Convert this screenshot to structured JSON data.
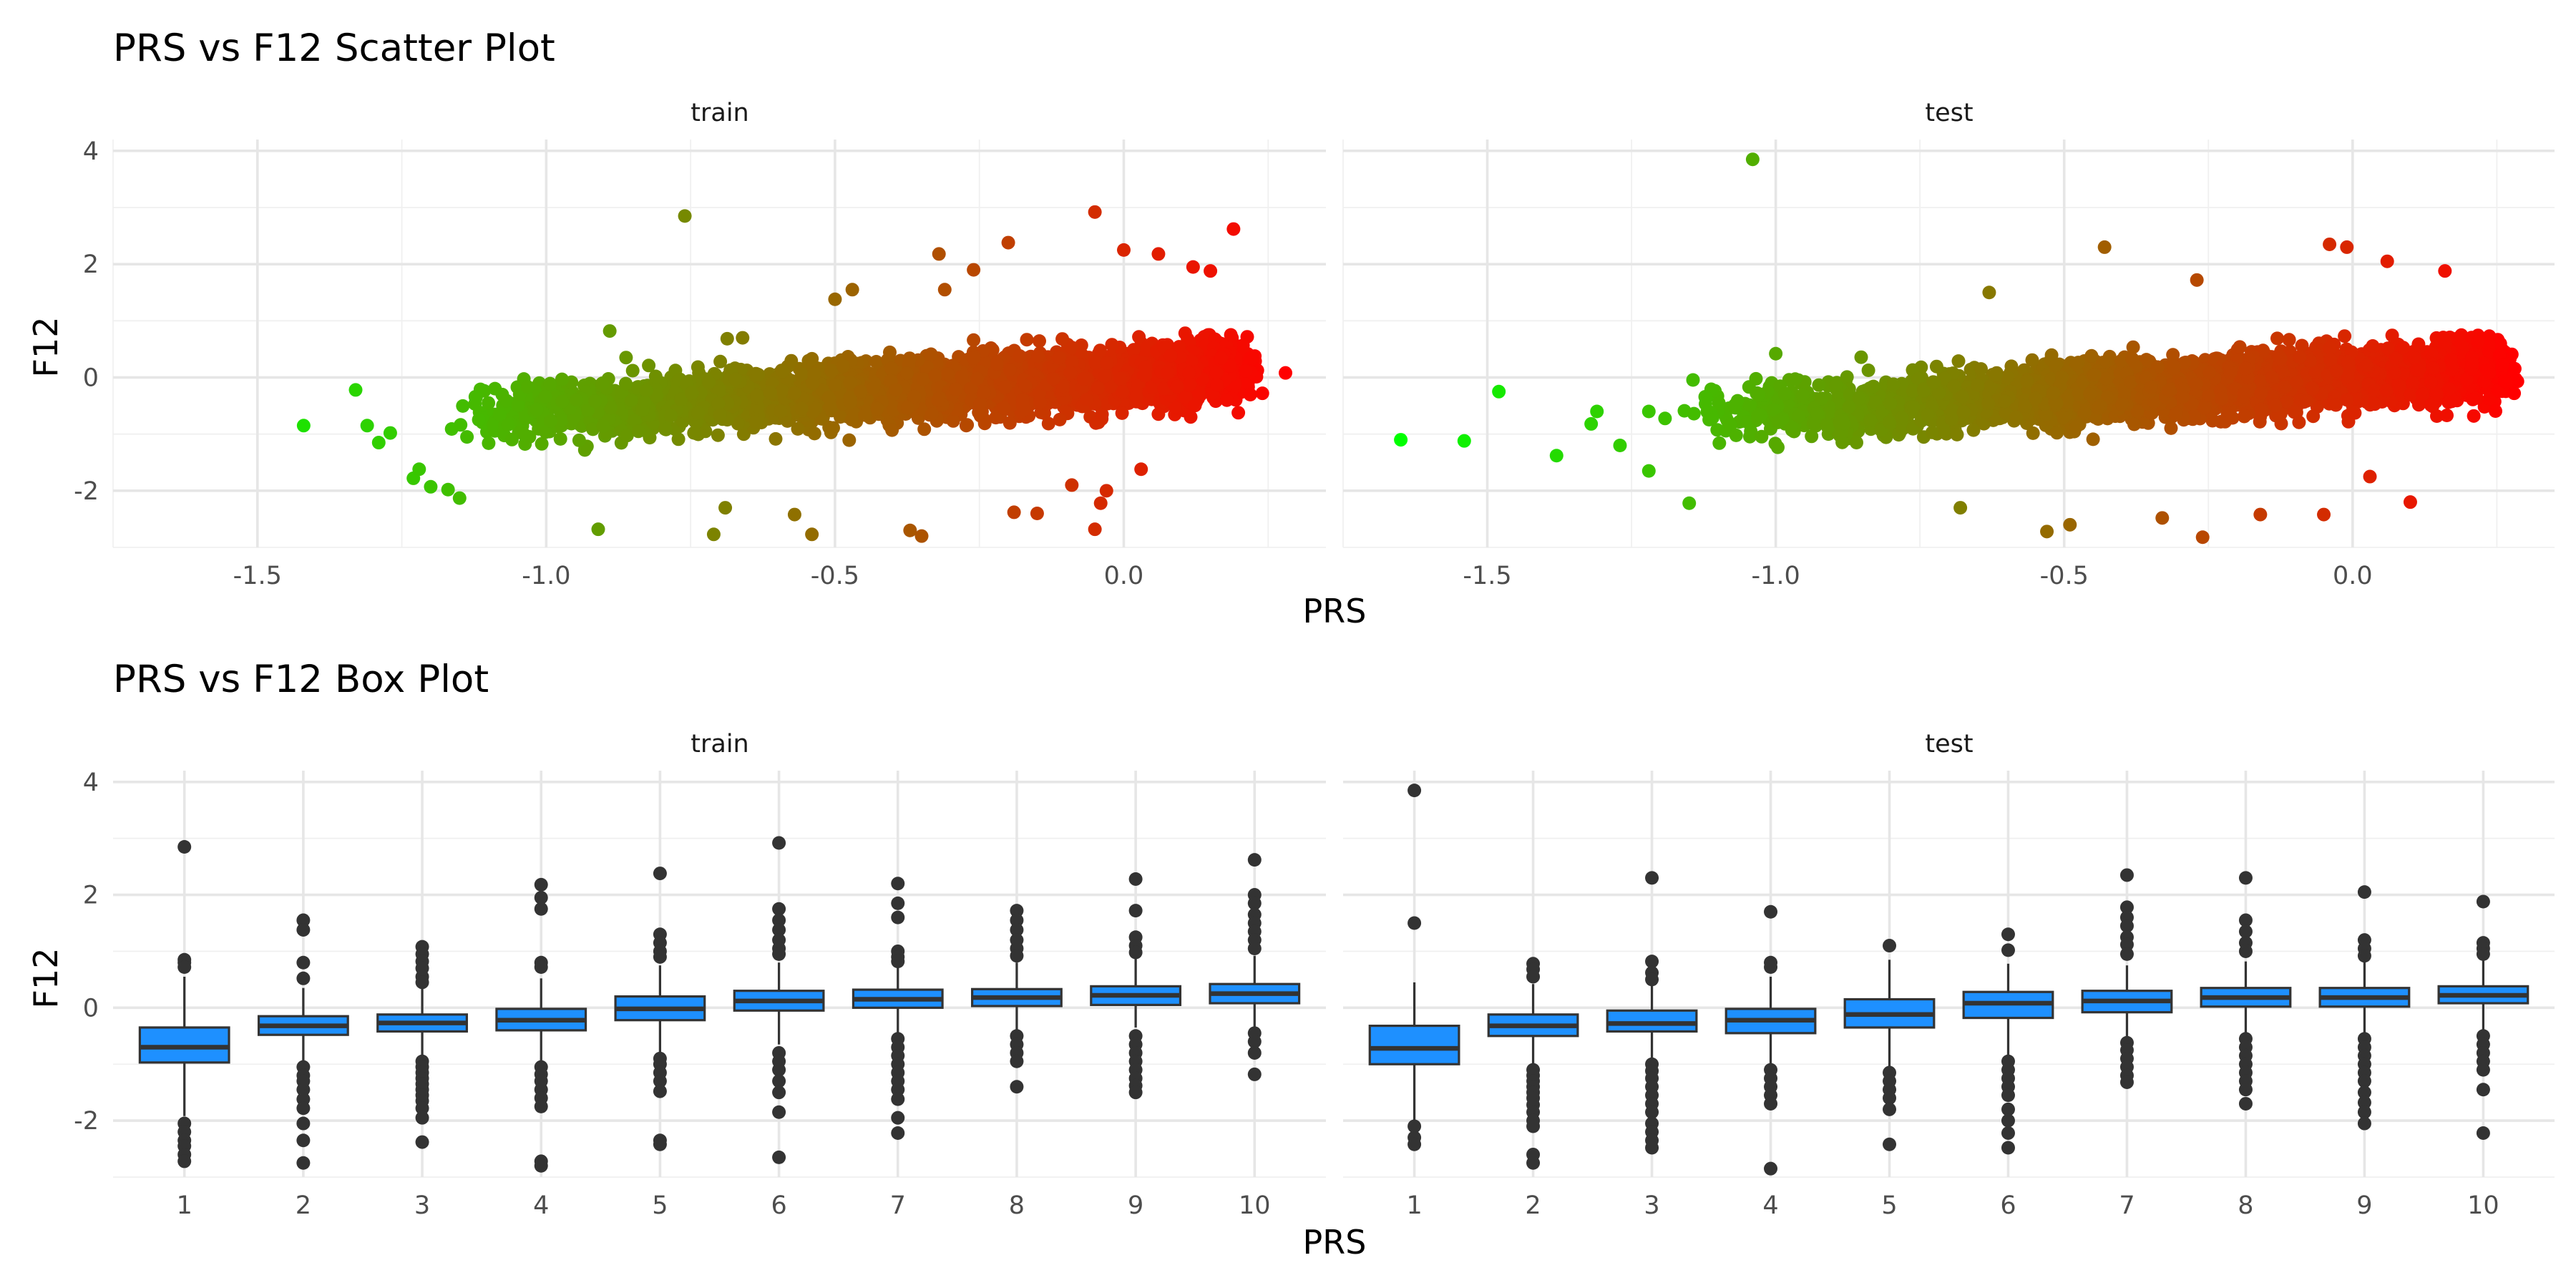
{
  "colors": {
    "scatter_low": "#00ff00",
    "scatter_high": "#ff0000",
    "box_fill": "#1e90ff",
    "box_line": "#333333",
    "outlier": "#333333"
  },
  "chart_data": [
    {
      "type": "scatter",
      "title": "PRS vs F12 Scatter Plot",
      "xlabel": "PRS",
      "ylabel": "F12",
      "xlim": [
        -1.75,
        0.35
      ],
      "ylim": [
        -3.0,
        4.2
      ],
      "xticks": [
        -1.5,
        -1.0,
        -0.5,
        0.0
      ],
      "xtick_labels": [
        "-1.5",
        "-1.0",
        "-0.5",
        "0.0"
      ],
      "yticks": [
        -2,
        0,
        2,
        4
      ],
      "ytick_labels": [
        "-2",
        "0",
        "2",
        "4"
      ],
      "color_gradient": [
        "#00ff00",
        "#ff0000"
      ],
      "grid": true,
      "note_distribution": "bulk cloud approx F12 = -0.6 + 0.6*(PRS+1)",
      "panels": [
        {
          "label": "train",
          "bulk_x_range": [
            -1.15,
            0.2
          ],
          "points": [
            {
              "x": -1.42,
              "y": -0.85
            },
            {
              "x": -1.33,
              "y": -0.22
            },
            {
              "x": -1.31,
              "y": -0.85
            },
            {
              "x": -1.29,
              "y": -1.15
            },
            {
              "x": -1.27,
              "y": -0.98
            },
            {
              "x": -1.23,
              "y": -1.78
            },
            {
              "x": -1.22,
              "y": -1.62
            },
            {
              "x": -1.2,
              "y": -1.93
            },
            {
              "x": -1.17,
              "y": -1.98
            },
            {
              "x": -1.15,
              "y": -2.13
            },
            {
              "x": -0.91,
              "y": -2.68
            },
            {
              "x": -0.89,
              "y": 0.82
            },
            {
              "x": -0.76,
              "y": 2.85
            },
            {
              "x": -0.71,
              "y": -2.77
            },
            {
              "x": -0.69,
              "y": -2.3
            },
            {
              "x": -0.66,
              "y": 0.7
            },
            {
              "x": -0.57,
              "y": -2.42
            },
            {
              "x": -0.54,
              "y": -2.77
            },
            {
              "x": -0.5,
              "y": 1.38
            },
            {
              "x": -0.47,
              "y": 1.55
            },
            {
              "x": -0.37,
              "y": -2.7
            },
            {
              "x": -0.35,
              "y": -2.8
            },
            {
              "x": -0.32,
              "y": 2.18
            },
            {
              "x": -0.31,
              "y": 1.55
            },
            {
              "x": -0.26,
              "y": 1.9
            },
            {
              "x": -0.2,
              "y": 2.38
            },
            {
              "x": -0.19,
              "y": -2.38
            },
            {
              "x": -0.15,
              "y": -2.4
            },
            {
              "x": -0.09,
              "y": -1.9
            },
            {
              "x": -0.05,
              "y": 2.92
            },
            {
              "x": -0.05,
              "y": -2.68
            },
            {
              "x": -0.04,
              "y": -2.22
            },
            {
              "x": -0.03,
              "y": -2.0
            },
            {
              "x": 0.0,
              "y": 2.25
            },
            {
              "x": 0.03,
              "y": -1.62
            },
            {
              "x": 0.06,
              "y": 2.18
            },
            {
              "x": 0.12,
              "y": 1.95
            },
            {
              "x": 0.15,
              "y": 1.88
            },
            {
              "x": 0.19,
              "y": 2.62
            },
            {
              "x": 0.22,
              "y": 0.35
            },
            {
              "x": 0.24,
              "y": -0.28
            },
            {
              "x": 0.28,
              "y": 0.08
            }
          ]
        },
        {
          "label": "test",
          "bulk_x_range": [
            -1.15,
            0.25
          ],
          "points": [
            {
              "x": -1.65,
              "y": -1.1
            },
            {
              "x": -1.54,
              "y": -1.12
            },
            {
              "x": -1.48,
              "y": -0.25
            },
            {
              "x": -1.38,
              "y": -1.38
            },
            {
              "x": -1.32,
              "y": -0.82
            },
            {
              "x": -1.31,
              "y": -0.6
            },
            {
              "x": -1.27,
              "y": -1.2
            },
            {
              "x": -1.22,
              "y": -0.6
            },
            {
              "x": -1.22,
              "y": -1.65
            },
            {
              "x": -1.15,
              "y": -2.22
            },
            {
              "x": -1.04,
              "y": 3.85
            },
            {
              "x": -1.0,
              "y": 0.42
            },
            {
              "x": -0.68,
              "y": -2.3
            },
            {
              "x": -0.63,
              "y": 1.5
            },
            {
              "x": -0.53,
              "y": -2.72
            },
            {
              "x": -0.49,
              "y": -2.6
            },
            {
              "x": -0.43,
              "y": 2.3
            },
            {
              "x": -0.33,
              "y": -2.48
            },
            {
              "x": -0.27,
              "y": 1.72
            },
            {
              "x": -0.26,
              "y": -2.82
            },
            {
              "x": -0.16,
              "y": -2.42
            },
            {
              "x": -0.05,
              "y": -2.42
            },
            {
              "x": -0.04,
              "y": 2.35
            },
            {
              "x": -0.01,
              "y": 2.3
            },
            {
              "x": 0.03,
              "y": -1.75
            },
            {
              "x": 0.06,
              "y": 2.05
            },
            {
              "x": 0.1,
              "y": -2.2
            },
            {
              "x": 0.16,
              "y": 1.88
            },
            {
              "x": 0.21,
              "y": -0.68
            },
            {
              "x": 0.26,
              "y": 0.22
            },
            {
              "x": 0.28,
              "y": -0.28
            }
          ]
        }
      ]
    },
    {
      "type": "box",
      "title": "PRS vs F12 Box Plot",
      "xlabel": "PRS",
      "ylabel": "F12",
      "categories": [
        "1",
        "2",
        "3",
        "4",
        "5",
        "6",
        "7",
        "8",
        "9",
        "10"
      ],
      "ylim": [
        -3.0,
        4.2
      ],
      "yticks": [
        -2,
        0,
        2,
        4
      ],
      "ytick_labels": [
        "-2",
        "0",
        "2",
        "4"
      ],
      "grid": true,
      "fill": "#1e90ff",
      "panels": [
        {
          "label": "train",
          "boxes": [
            {
              "q1": -0.97,
              "median": -0.7,
              "q3": -0.35,
              "whisker_low": -1.92,
              "whisker_high": 0.55,
              "outliers": [
                2.85,
                0.85,
                0.8,
                0.72,
                -2.05,
                -2.2,
                -2.35,
                -2.45,
                -2.6,
                -2.72
              ]
            },
            {
              "q1": -0.48,
              "median": -0.32,
              "q3": -0.15,
              "whisker_low": -0.98,
              "whisker_high": 0.35,
              "outliers": [
                1.55,
                1.38,
                0.8,
                0.52,
                -1.05,
                -1.2,
                -1.3,
                -1.45,
                -1.62,
                -1.78,
                -2.05,
                -2.35,
                -2.75
              ]
            },
            {
              "q1": -0.42,
              "median": -0.27,
              "q3": -0.12,
              "whisker_low": -0.88,
              "whisker_high": 0.35,
              "outliers": [
                1.08,
                0.95,
                0.82,
                0.7,
                0.55,
                0.45,
                -0.95,
                -1.05,
                -1.15,
                -1.25,
                -1.35,
                -1.45,
                -1.55,
                -1.65,
                -1.78,
                -1.95,
                -2.38
              ]
            },
            {
              "q1": -0.4,
              "median": -0.22,
              "q3": -0.02,
              "whisker_low": -0.95,
              "whisker_high": 0.52,
              "outliers": [
                2.18,
                1.95,
                1.75,
                0.8,
                0.72,
                -1.05,
                -1.18,
                -1.3,
                -1.45,
                -1.6,
                -1.75,
                -2.72,
                -2.8
              ]
            },
            {
              "q1": -0.22,
              "median": -0.02,
              "q3": 0.2,
              "whisker_low": -0.8,
              "whisker_high": 0.75,
              "outliers": [
                2.38,
                1.3,
                1.15,
                1.0,
                0.9,
                -0.9,
                -1.0,
                -1.15,
                -1.3,
                -1.48,
                -2.35,
                -2.42
              ]
            },
            {
              "q1": -0.05,
              "median": 0.12,
              "q3": 0.3,
              "whisker_low": -0.65,
              "whisker_high": 0.8,
              "outliers": [
                2.92,
                1.75,
                1.55,
                1.38,
                1.2,
                1.05,
                0.95,
                -0.8,
                -0.95,
                -1.1,
                -1.3,
                -1.5,
                -1.85,
                -2.65
              ]
            },
            {
              "q1": 0.0,
              "median": 0.15,
              "q3": 0.32,
              "whisker_low": -0.45,
              "whisker_high": 0.75,
              "outliers": [
                2.2,
                1.85,
                1.6,
                1.0,
                0.9,
                0.82,
                -0.55,
                -0.7,
                -0.85,
                -1.0,
                -1.15,
                -1.3,
                -1.45,
                -1.62,
                -1.95,
                -2.22
              ]
            },
            {
              "q1": 0.03,
              "median": 0.18,
              "q3": 0.33,
              "whisker_low": -0.4,
              "whisker_high": 0.8,
              "outliers": [
                1.72,
                1.55,
                1.38,
                1.2,
                1.05,
                0.92,
                -0.5,
                -0.65,
                -0.8,
                -0.95,
                -1.4
              ]
            },
            {
              "q1": 0.05,
              "median": 0.22,
              "q3": 0.38,
              "whisker_low": -0.35,
              "whisker_high": 0.88,
              "outliers": [
                2.28,
                1.72,
                1.25,
                1.1,
                0.98,
                -0.5,
                -0.65,
                -0.8,
                -0.95,
                -1.1,
                -1.25,
                -1.38,
                -1.5
              ]
            },
            {
              "q1": 0.08,
              "median": 0.25,
              "q3": 0.42,
              "whisker_low": -0.35,
              "whisker_high": 0.92,
              "outliers": [
                2.62,
                2.0,
                1.85,
                1.65,
                1.5,
                1.35,
                1.2,
                1.05,
                -0.45,
                -0.6,
                -0.8,
                -1.18
              ]
            }
          ]
        },
        {
          "label": "test",
          "boxes": [
            {
              "q1": -1.0,
              "median": -0.72,
              "q3": -0.32,
              "whisker_low": -2.0,
              "whisker_high": 0.45,
              "outliers": [
                3.85,
                1.5,
                -2.1,
                -2.3,
                -2.42
              ]
            },
            {
              "q1": -0.5,
              "median": -0.32,
              "q3": -0.12,
              "whisker_low": -1.05,
              "whisker_high": 0.42,
              "outliers": [
                0.78,
                0.68,
                0.55,
                -1.1,
                -1.2,
                -1.3,
                -1.4,
                -1.5,
                -1.6,
                -1.72,
                -1.85,
                -2.0,
                -2.1,
                -2.6,
                -2.75
              ]
            },
            {
              "q1": -0.42,
              "median": -0.28,
              "q3": -0.05,
              "whisker_low": -0.95,
              "whisker_high": 0.42,
              "outliers": [
                2.3,
                0.82,
                0.62,
                0.5,
                -1.0,
                -1.12,
                -1.25,
                -1.4,
                -1.55,
                -1.7,
                -1.85,
                -2.05,
                -2.2,
                -2.35,
                -2.48
              ]
            },
            {
              "q1": -0.45,
              "median": -0.22,
              "q3": -0.02,
              "whisker_low": -1.0,
              "whisker_high": 0.55,
              "outliers": [
                1.7,
                0.8,
                0.72,
                -1.1,
                -1.25,
                -1.4,
                -1.55,
                -1.7,
                -2.85
              ]
            },
            {
              "q1": -0.35,
              "median": -0.12,
              "q3": 0.15,
              "whisker_low": -1.05,
              "whisker_high": 0.85,
              "outliers": [
                1.1,
                -1.15,
                -1.3,
                -1.45,
                -1.6,
                -1.8,
                -2.42
              ]
            },
            {
              "q1": -0.18,
              "median": 0.08,
              "q3": 0.28,
              "whisker_low": -0.85,
              "whisker_high": 0.78,
              "outliers": [
                1.3,
                1.02,
                -0.95,
                -1.1,
                -1.25,
                -1.4,
                -1.55,
                -1.8,
                -2.0,
                -2.22,
                -2.48
              ]
            },
            {
              "q1": -0.08,
              "median": 0.12,
              "q3": 0.3,
              "whisker_low": -0.55,
              "whisker_high": 0.75,
              "outliers": [
                2.35,
                1.78,
                1.6,
                1.45,
                1.25,
                1.12,
                0.95,
                -0.62,
                -0.75,
                -0.9,
                -1.05,
                -1.2,
                -1.32
              ]
            },
            {
              "q1": 0.02,
              "median": 0.18,
              "q3": 0.35,
              "whisker_low": -0.45,
              "whisker_high": 0.82,
              "outliers": [
                2.3,
                1.55,
                1.35,
                1.15,
                1.0,
                -0.55,
                -0.7,
                -0.85,
                -1.0,
                -1.15,
                -1.3,
                -1.45,
                -1.7
              ]
            },
            {
              "q1": 0.02,
              "median": 0.18,
              "q3": 0.35,
              "whisker_low": -0.45,
              "whisker_high": 0.85,
              "outliers": [
                2.05,
                1.2,
                1.05,
                0.92,
                -0.55,
                -0.7,
                -0.85,
                -1.0,
                -1.15,
                -1.3,
                -1.5,
                -1.68,
                -1.85,
                -2.05
              ]
            },
            {
              "q1": 0.08,
              "median": 0.22,
              "q3": 0.38,
              "whisker_low": -0.4,
              "whisker_high": 0.85,
              "outliers": [
                1.88,
                1.15,
                1.05,
                0.95,
                -0.5,
                -0.65,
                -0.8,
                -0.95,
                -1.1,
                -1.45,
                -2.22
              ]
            }
          ]
        }
      ]
    }
  ]
}
